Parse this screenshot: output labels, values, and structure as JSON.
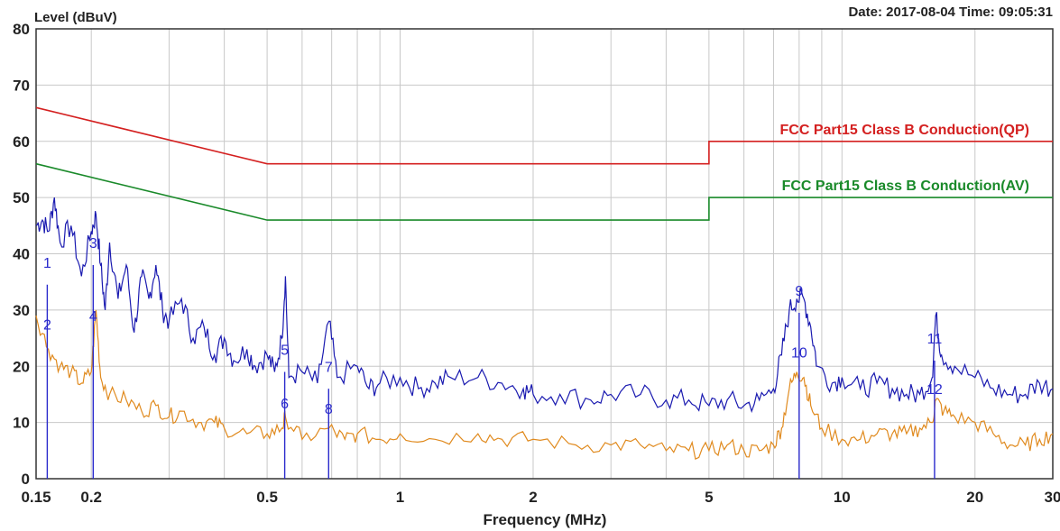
{
  "header": {
    "y_axis_label": "Level (dBuV)",
    "date_time": "Date: 2017-08-04  Time: 09:05:31"
  },
  "colors": {
    "qp_limit": "#d42020",
    "av_limit": "#1a8a2a",
    "peak_trace": "#1a1ab0",
    "avg_trace": "#e08a1e",
    "marker": "#2a2acc",
    "grid": "#c8c8c8"
  },
  "chart_data": {
    "type": "line",
    "title": "",
    "xlabel": "Frequency (MHz)",
    "ylabel": "Level (dBuV)",
    "x_scale": "log",
    "xlim": [
      0.15,
      30
    ],
    "ylim": [
      0,
      80
    ],
    "grid": true,
    "x_tick_labels": [
      {
        "value": 0.15,
        "label": "0.15"
      },
      {
        "value": 0.2,
        "label": "0.2"
      },
      {
        "value": 0.5,
        "label": "0.5"
      },
      {
        "value": 1,
        "label": "1"
      },
      {
        "value": 2,
        "label": "2"
      },
      {
        "value": 5,
        "label": "5"
      },
      {
        "value": 10,
        "label": "10"
      },
      {
        "value": 20,
        "label": "20"
      },
      {
        "value": 30,
        "label": "30"
      }
    ],
    "y_tick_labels": [
      "0",
      "10",
      "20",
      "30",
      "40",
      "50",
      "60",
      "70",
      "80"
    ],
    "limits": [
      {
        "name": "FCC Part15 Class B Conduction(QP)",
        "color_key": "qp_limit",
        "points": [
          [
            0.15,
            66
          ],
          [
            0.5,
            56
          ],
          [
            5,
            56
          ],
          [
            5,
            60
          ],
          [
            30,
            60
          ]
        ]
      },
      {
        "name": "FCC Part15 Class B Conduction(AV)",
        "color_key": "av_limit",
        "points": [
          [
            0.15,
            56
          ],
          [
            0.5,
            46
          ],
          [
            5,
            46
          ],
          [
            5,
            50
          ],
          [
            30,
            50
          ]
        ]
      }
    ],
    "series": [
      {
        "color_key": "peak_trace",
        "points": [
          [
            0.15,
            45
          ],
          [
            0.155,
            46
          ],
          [
            0.16,
            44
          ],
          [
            0.165,
            50
          ],
          [
            0.17,
            42
          ],
          [
            0.18,
            45
          ],
          [
            0.19,
            36
          ],
          [
            0.2,
            44
          ],
          [
            0.205,
            47
          ],
          [
            0.21,
            38
          ],
          [
            0.215,
            30
          ],
          [
            0.22,
            42
          ],
          [
            0.23,
            32
          ],
          [
            0.24,
            38
          ],
          [
            0.25,
            26
          ],
          [
            0.26,
            36
          ],
          [
            0.27,
            32
          ],
          [
            0.28,
            38
          ],
          [
            0.29,
            30
          ],
          [
            0.3,
            28
          ],
          [
            0.32,
            32
          ],
          [
            0.34,
            25
          ],
          [
            0.36,
            27
          ],
          [
            0.38,
            22
          ],
          [
            0.4,
            25
          ],
          [
            0.42,
            21
          ],
          [
            0.45,
            23
          ],
          [
            0.47,
            20
          ],
          [
            0.5,
            22
          ],
          [
            0.52,
            19
          ],
          [
            0.54,
            25
          ],
          [
            0.55,
            36
          ],
          [
            0.56,
            18
          ],
          [
            0.6,
            19
          ],
          [
            0.65,
            17
          ],
          [
            0.69,
            28
          ],
          [
            0.72,
            18
          ],
          [
            0.8,
            20
          ],
          [
            0.85,
            16
          ],
          [
            0.9,
            17
          ],
          [
            1.0,
            18
          ],
          [
            1.1,
            16
          ],
          [
            1.2,
            17
          ],
          [
            1.3,
            18
          ],
          [
            1.5,
            18
          ],
          [
            1.7,
            17
          ],
          [
            1.9,
            16
          ],
          [
            2.0,
            15
          ],
          [
            2.3,
            15
          ],
          [
            2.7,
            14
          ],
          [
            3.0,
            15
          ],
          [
            3.5,
            15
          ],
          [
            4.0,
            14
          ],
          [
            4.5,
            14
          ],
          [
            5.0,
            13
          ],
          [
            5.5,
            14
          ],
          [
            6.0,
            13
          ],
          [
            6.5,
            14
          ],
          [
            7.0,
            16
          ],
          [
            7.3,
            22
          ],
          [
            7.6,
            30
          ],
          [
            7.9,
            32
          ],
          [
            8.2,
            32
          ],
          [
            8.5,
            27
          ],
          [
            8.8,
            20
          ],
          [
            9.5,
            17
          ],
          [
            10,
            18
          ],
          [
            11,
            16
          ],
          [
            12,
            17
          ],
          [
            13,
            16
          ],
          [
            14,
            15
          ],
          [
            15,
            15
          ],
          [
            16,
            18
          ],
          [
            16.3,
            29
          ],
          [
            16.8,
            22
          ],
          [
            18,
            20
          ],
          [
            20,
            18
          ],
          [
            22,
            16
          ],
          [
            24,
            15
          ],
          [
            26,
            15
          ],
          [
            28,
            17
          ],
          [
            30,
            16
          ]
        ]
      },
      {
        "color_key": "avg_trace",
        "points": [
          [
            0.15,
            29
          ],
          [
            0.16,
            23
          ],
          [
            0.17,
            20
          ],
          [
            0.18,
            19
          ],
          [
            0.19,
            17
          ],
          [
            0.2,
            19
          ],
          [
            0.205,
            30
          ],
          [
            0.21,
            18
          ],
          [
            0.22,
            15
          ],
          [
            0.24,
            14
          ],
          [
            0.26,
            12
          ],
          [
            0.28,
            13
          ],
          [
            0.3,
            11
          ],
          [
            0.32,
            12
          ],
          [
            0.35,
            10
          ],
          [
            0.38,
            10
          ],
          [
            0.4,
            9
          ],
          [
            0.45,
            8
          ],
          [
            0.5,
            8
          ],
          [
            0.54,
            9
          ],
          [
            0.55,
            11
          ],
          [
            0.6,
            7
          ],
          [
            0.69,
            9
          ],
          [
            0.75,
            7
          ],
          [
            0.8,
            8
          ],
          [
            0.9,
            7
          ],
          [
            1.0,
            8
          ],
          [
            1.2,
            7
          ],
          [
            1.5,
            8
          ],
          [
            1.7,
            7
          ],
          [
            2.0,
            7
          ],
          [
            2.5,
            6
          ],
          [
            3.0,
            6
          ],
          [
            3.5,
            6
          ],
          [
            4.0,
            5
          ],
          [
            4.5,
            5
          ],
          [
            5.0,
            5
          ],
          [
            5.5,
            6
          ],
          [
            6.0,
            5
          ],
          [
            6.5,
            5
          ],
          [
            7.0,
            6
          ],
          [
            7.3,
            9
          ],
          [
            7.6,
            16
          ],
          [
            7.9,
            19
          ],
          [
            8.2,
            18
          ],
          [
            8.5,
            13
          ],
          [
            9.0,
            9
          ],
          [
            10,
            7
          ],
          [
            11,
            7
          ],
          [
            12,
            8
          ],
          [
            13,
            8
          ],
          [
            14,
            8
          ],
          [
            15,
            9
          ],
          [
            16,
            10
          ],
          [
            16.3,
            14
          ],
          [
            17,
            12
          ],
          [
            18,
            11
          ],
          [
            20,
            10
          ],
          [
            22,
            8
          ],
          [
            24,
            6
          ],
          [
            26,
            6
          ],
          [
            28,
            7
          ],
          [
            30,
            8
          ]
        ]
      }
    ],
    "markers": [
      {
        "label": "1",
        "freq": 0.159,
        "level": 38.5
      },
      {
        "label": "2",
        "freq": 0.159,
        "level": 27.5
      },
      {
        "label": "3",
        "freq": 0.202,
        "level": 42
      },
      {
        "label": "4",
        "freq": 0.202,
        "level": 29
      },
      {
        "label": "5",
        "freq": 0.548,
        "level": 23
      },
      {
        "label": "6",
        "freq": 0.548,
        "level": 13.5
      },
      {
        "label": "7",
        "freq": 0.689,
        "level": 20
      },
      {
        "label": "8",
        "freq": 0.689,
        "level": 12.5
      },
      {
        "label": "9",
        "freq": 8.0,
        "level": 33.5
      },
      {
        "label": "10",
        "freq": 8.0,
        "level": 22.5
      },
      {
        "label": "11",
        "freq": 16.2,
        "level": 25
      },
      {
        "label": "12",
        "freq": 16.2,
        "level": 16
      }
    ]
  }
}
